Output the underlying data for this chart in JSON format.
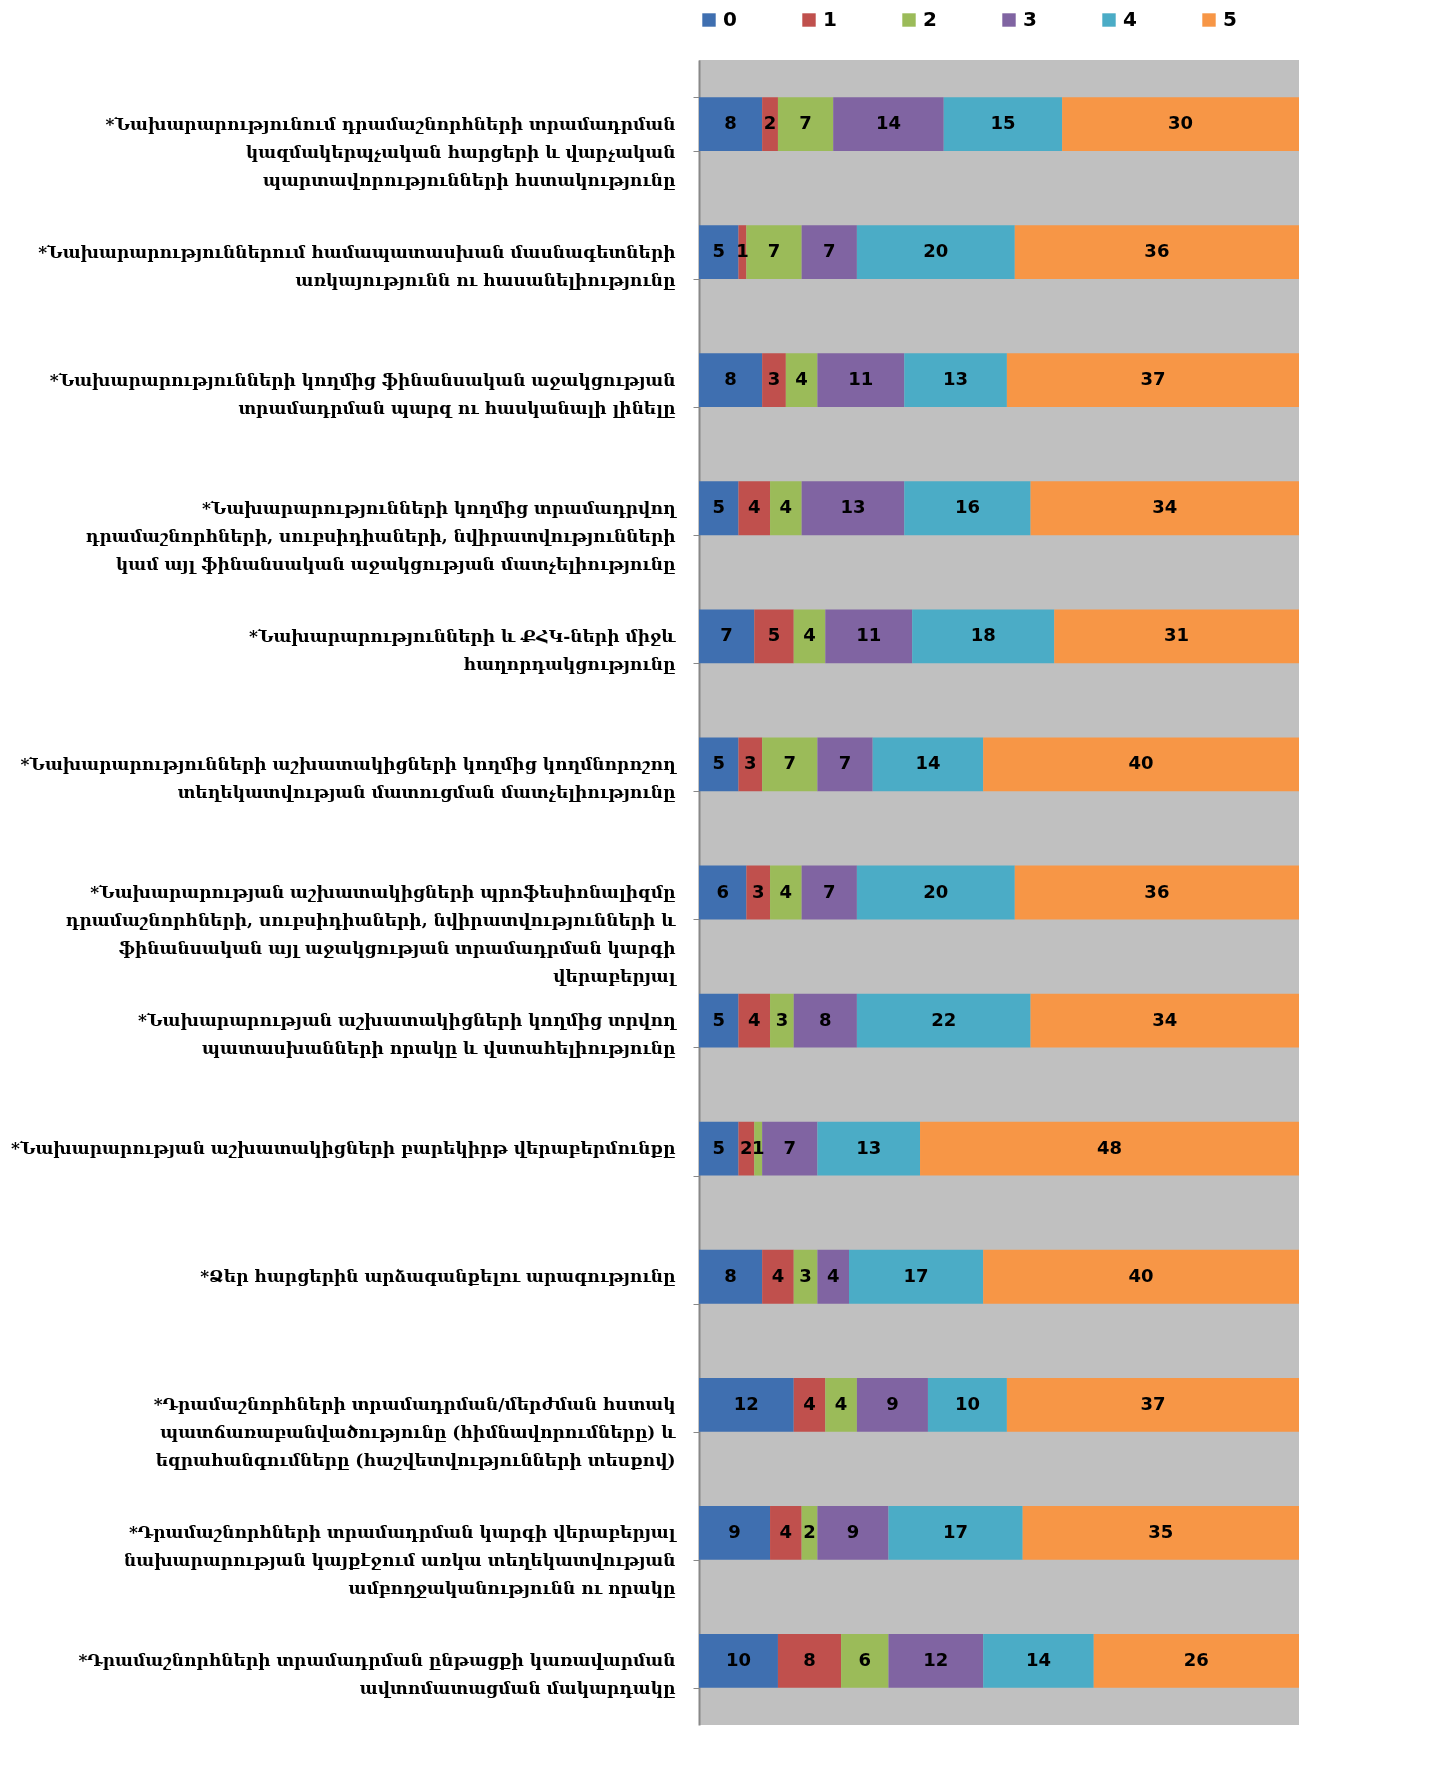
{
  "chart_data": {
    "type": "bar",
    "orientation": "horizontal",
    "stacked": true,
    "data_labels": true,
    "legend": "top",
    "xlim": [
      0,
      76
    ],
    "categories": [
      "*Նախարարությունում դրամաշնորհների տրամադրման կազմակերպչական հարցերի և վարչական պարտավորությունների հստակությունը",
      "*Նախարարություններում համապատասխան մասնագետների առկայությունն ու հասանելիությունը",
      "*Նախարարությունների կողմից ֆինանսական աջակցության տրամադրման պարզ ու հասկանալի լինելը",
      "*Նախարարությունների կողմից տրամադրվող դրամաշնորհների, սուբսիդիաների, նվիրատվությունների կամ այլ ֆինանսական աջակցության մատչելիությունը",
      "*Նախարարությունների և ՔՀԿ-ների միջև հաղորդակցությունը",
      "*Նախարարությունների աշխատակիցների կողմից կողմնորոշող տեղեկատվության մատուցման մատչելիությունը",
      "*Նախարարության աշխատակիցների պրոֆեսիոնալիզմը դրամաշնորհների, սուբսիդիաների, նվիրատվությունների և ֆինանսական այլ աջակցության տրամադրման կարգի վերաբերյալ",
      "*Նախարարության աշխատակիցների կողմից տրվող պատասխանների որակը և վստահելիությունը",
      "*Նախարարության աշխատակիցների բարեկիրթ վերաբերմունքը",
      "*Ձեր հարցերին արձագանքելու արագությունը",
      "*Դրամաշնորհների տրամադրման/մերժման հստակ պատճառաբանվածությունը (հիմնավորումները) և եզրահանգումները (հաշվետվությունների տեսքով)",
      "*Դրամաշնորհների տրամադրման կարգի վերաբերյալ նախարարության կայքէջում առկա տեղեկատվության ամբողջականությունն ու որակը",
      "*Դրամաշնորհների տրամադրման ընթացքի կառավարման ավտոմատացման մակարդակը"
    ],
    "series": [
      {
        "name": "0",
        "color": "#3f6fb0",
        "values": [
          8,
          5,
          8,
          5,
          7,
          5,
          6,
          5,
          5,
          8,
          12,
          9,
          10
        ]
      },
      {
        "name": "1",
        "color": "#c0504d",
        "values": [
          2,
          1,
          3,
          4,
          5,
          3,
          3,
          4,
          2,
          4,
          4,
          4,
          8
        ]
      },
      {
        "name": "2",
        "color": "#9bbb59",
        "values": [
          7,
          7,
          4,
          4,
          4,
          7,
          4,
          3,
          1,
          3,
          4,
          2,
          6
        ]
      },
      {
        "name": "3",
        "color": "#8064a2",
        "values": [
          14,
          7,
          11,
          13,
          11,
          7,
          7,
          8,
          7,
          4,
          9,
          9,
          12
        ]
      },
      {
        "name": "4",
        "color": "#4bacc6",
        "values": [
          15,
          20,
          13,
          16,
          18,
          14,
          20,
          22,
          13,
          17,
          10,
          17,
          14
        ]
      },
      {
        "name": "5",
        "color": "#f79646",
        "values": [
          30,
          36,
          37,
          34,
          31,
          40,
          36,
          34,
          48,
          40,
          37,
          35,
          26
        ]
      }
    ]
  }
}
